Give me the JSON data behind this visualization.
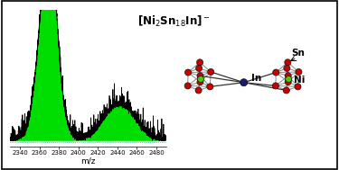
{
  "title": "[Ni$_2$Sn$_{18}$In]$^-$",
  "xlabel": "m/z",
  "xlim": [
    2330,
    2490
  ],
  "xticks": [
    2340,
    2360,
    2380,
    2400,
    2420,
    2440,
    2460,
    2480
  ],
  "background_color": "#ffffff",
  "border_color": "#000000",
  "green_fill_color": "#00dd00",
  "black_line_color": "#000000",
  "sn_color": "#cc0000",
  "ni_color": "#44cc00",
  "in_color": "#1a1a6e",
  "bond_color": "#888888"
}
